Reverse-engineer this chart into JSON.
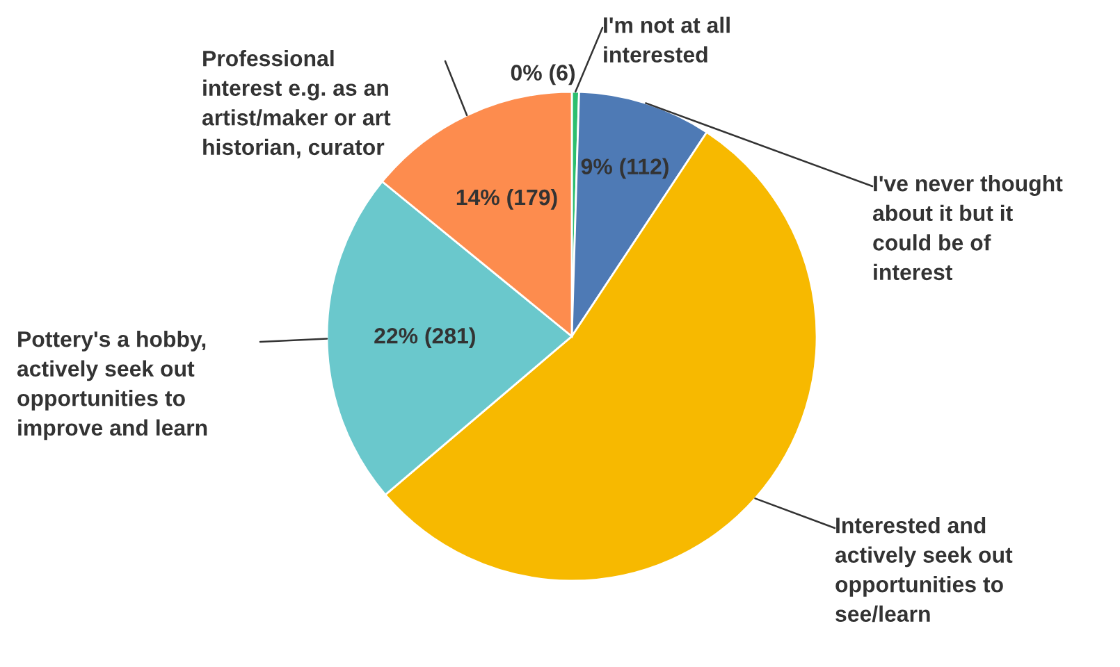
{
  "chart_data": {
    "type": "pie",
    "categories": [
      "I'm not at all\ninterested",
      "I've never thought\nabout it but it\ncould be of\ninterest",
      "Interested and\nactively seek out\nopportunities to\nsee/learn",
      "Pottery's a hobby,\nactively seek out\nopportunities to\nimprove and learn",
      "Professional\ninterest e.g. as an\nartist/maker or art\nhistorian, curator"
    ],
    "values": [
      6,
      112,
      692,
      281,
      179
    ],
    "value_labels": [
      "0% (6)",
      "9% (112)",
      null,
      "22% (281)",
      "14% (179)"
    ],
    "colors": [
      "#2dbf6f",
      "#4e7ab5",
      "#f7b900",
      "#6ac8cc",
      "#fd8c4e"
    ],
    "legend": false
  }
}
